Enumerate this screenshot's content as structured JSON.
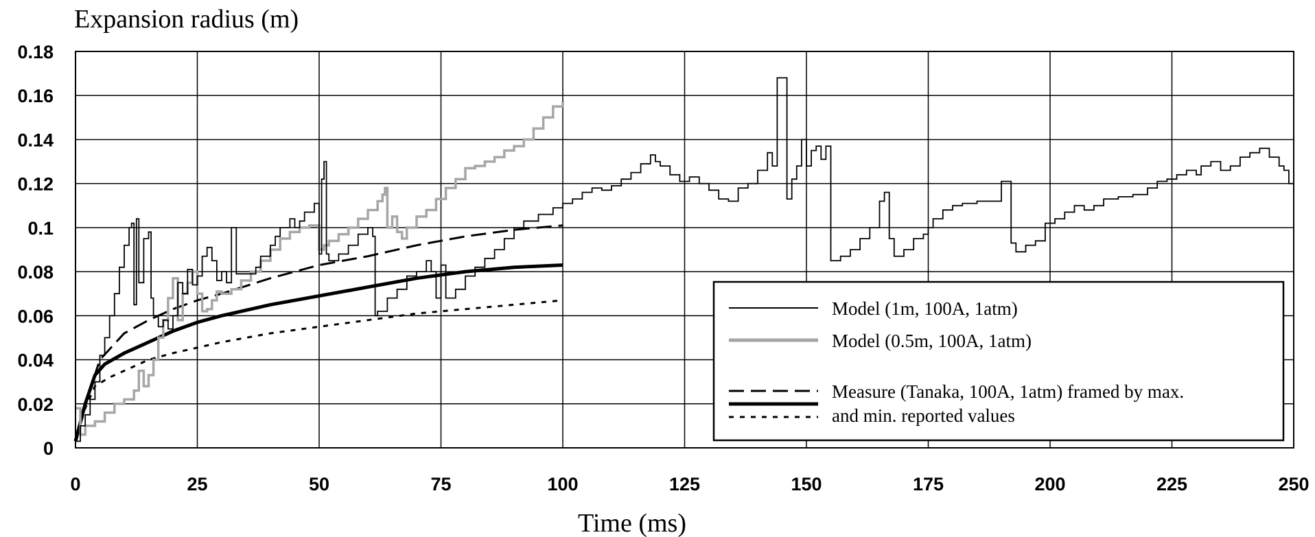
{
  "chart_data": {
    "type": "line",
    "title": "",
    "ylabel": "Expansion radius (m)",
    "xlabel": "Time (ms)",
    "xlim": [
      0,
      250
    ],
    "ylim": [
      0,
      0.18
    ],
    "x_ticks": [
      0,
      25,
      50,
      75,
      100,
      125,
      150,
      175,
      200,
      225,
      250
    ],
    "y_ticks": [
      0,
      0.02,
      0.04,
      0.06,
      0.08,
      0.1,
      0.12,
      0.14,
      0.16,
      0.18
    ],
    "x_tick_labels": [
      "0",
      "25",
      "50",
      "75",
      "100",
      "125",
      "150",
      "175",
      "200",
      "225",
      "250"
    ],
    "y_tick_labels": [
      "0",
      "0.02",
      "0.04",
      "0.06",
      "0.08",
      "0.1",
      "0.12",
      "0.14",
      "0.16",
      "0.18"
    ],
    "grid": true,
    "legend_position": "bottom-right",
    "legend": [
      {
        "text": "Model (1m, 100A, 1atm)",
        "style": "thin-black"
      },
      {
        "text": "Model (0.5m, 100A, 1atm)",
        "style": "thick-gray"
      },
      {
        "text": "Measure (Tanaka, 100A, 1atm) framed by max.",
        "style": "dashed"
      },
      {
        "text": "and min. reported values",
        "style": "thick-black"
      },
      {
        "text": "",
        "style": "dotted"
      }
    ],
    "series": [
      {
        "key": "model_1m",
        "color": "#000000",
        "step": true,
        "points": [
          [
            0,
            0.003
          ],
          [
            1,
            0.01
          ],
          [
            2,
            0.015
          ],
          [
            3,
            0.022
          ],
          [
            4,
            0.03
          ],
          [
            5,
            0.042
          ],
          [
            6,
            0.05
          ],
          [
            7,
            0.06
          ],
          [
            8,
            0.07
          ],
          [
            9,
            0.082
          ],
          [
            10,
            0.092
          ],
          [
            11,
            0.1
          ],
          [
            11.5,
            0.102
          ],
          [
            12,
            0.065
          ],
          [
            12.5,
            0.104
          ],
          [
            13,
            0.075
          ],
          [
            14,
            0.095
          ],
          [
            15,
            0.098
          ],
          [
            15.5,
            0.068
          ],
          [
            16,
            0.06
          ],
          [
            17,
            0.055
          ],
          [
            18,
            0.058
          ],
          [
            19,
            0.054
          ],
          [
            20,
            0.06
          ],
          [
            21,
            0.075
          ],
          [
            22,
            0.07
          ],
          [
            23,
            0.081
          ],
          [
            24,
            0.074
          ],
          [
            25,
            0.078
          ],
          [
            26,
            0.087
          ],
          [
            27,
            0.091
          ],
          [
            28,
            0.085
          ],
          [
            29,
            0.076
          ],
          [
            30,
            0.08
          ],
          [
            31,
            0.075
          ],
          [
            32,
            0.1
          ],
          [
            33,
            0.079
          ],
          [
            35,
            0.079
          ],
          [
            37,
            0.082
          ],
          [
            38,
            0.087
          ],
          [
            40,
            0.092
          ],
          [
            41,
            0.096
          ],
          [
            42,
            0.1
          ],
          [
            44,
            0.104
          ],
          [
            45,
            0.1
          ],
          [
            46,
            0.103
          ],
          [
            47,
            0.107
          ],
          [
            49,
            0.111
          ],
          [
            50,
            0.088
          ],
          [
            50.5,
            0.122
          ],
          [
            51,
            0.13
          ],
          [
            51.5,
            0.088
          ],
          [
            52,
            0.085
          ],
          [
            54,
            0.088
          ],
          [
            56,
            0.092
          ],
          [
            58,
            0.097
          ],
          [
            60,
            0.1
          ],
          [
            61,
            0.096
          ],
          [
            61.5,
            0.06
          ],
          [
            62,
            0.062
          ],
          [
            64,
            0.068
          ],
          [
            66,
            0.072
          ],
          [
            68,
            0.078
          ],
          [
            70,
            0.08
          ],
          [
            72,
            0.085
          ],
          [
            73,
            0.08
          ],
          [
            74,
            0.068
          ],
          [
            75,
            0.083
          ],
          [
            76,
            0.068
          ],
          [
            78,
            0.072
          ],
          [
            80,
            0.078
          ],
          [
            82,
            0.082
          ],
          [
            84,
            0.086
          ],
          [
            86,
            0.09
          ],
          [
            88,
            0.095
          ],
          [
            90,
            0.1
          ],
          [
            92,
            0.103
          ],
          [
            95,
            0.106
          ],
          [
            98,
            0.109
          ],
          [
            100,
            0.111
          ],
          [
            102,
            0.113
          ],
          [
            104,
            0.116
          ],
          [
            106,
            0.118
          ],
          [
            108,
            0.117
          ],
          [
            110,
            0.119
          ],
          [
            112,
            0.122
          ],
          [
            114,
            0.125
          ],
          [
            116,
            0.129
          ],
          [
            118,
            0.133
          ],
          [
            119,
            0.13
          ],
          [
            120,
            0.128
          ],
          [
            122,
            0.124
          ],
          [
            124,
            0.121
          ],
          [
            126,
            0.123
          ],
          [
            128,
            0.12
          ],
          [
            130,
            0.117
          ],
          [
            132,
            0.113
          ],
          [
            134,
            0.112
          ],
          [
            136,
            0.118
          ],
          [
            138,
            0.12
          ],
          [
            140,
            0.126
          ],
          [
            142,
            0.134
          ],
          [
            143,
            0.128
          ],
          [
            144,
            0.168
          ],
          [
            145,
            0.168
          ],
          [
            146,
            0.113
          ],
          [
            147,
            0.122
          ],
          [
            148,
            0.128
          ],
          [
            149,
            0.14
          ],
          [
            150,
            0.128
          ],
          [
            151,
            0.135
          ],
          [
            152,
            0.137
          ],
          [
            153,
            0.131
          ],
          [
            154,
            0.137
          ],
          [
            155,
            0.085
          ],
          [
            157,
            0.087
          ],
          [
            159,
            0.09
          ],
          [
            161,
            0.095
          ],
          [
            163,
            0.1
          ],
          [
            165,
            0.112
          ],
          [
            166,
            0.116
          ],
          [
            167,
            0.095
          ],
          [
            168,
            0.087
          ],
          [
            170,
            0.09
          ],
          [
            172,
            0.095
          ],
          [
            174,
            0.097
          ],
          [
            175,
            0.1
          ],
          [
            176,
            0.104
          ],
          [
            178,
            0.108
          ],
          [
            180,
            0.11
          ],
          [
            182,
            0.111
          ],
          [
            185,
            0.112
          ],
          [
            188,
            0.112
          ],
          [
            190,
            0.121
          ],
          [
            192,
            0.093
          ],
          [
            193,
            0.089
          ],
          [
            195,
            0.092
          ],
          [
            197,
            0.094
          ],
          [
            199,
            0.102
          ],
          [
            201,
            0.104
          ],
          [
            203,
            0.107
          ],
          [
            205,
            0.11
          ],
          [
            207,
            0.108
          ],
          [
            209,
            0.11
          ],
          [
            211,
            0.113
          ],
          [
            214,
            0.114
          ],
          [
            217,
            0.115
          ],
          [
            220,
            0.118
          ],
          [
            222,
            0.121
          ],
          [
            224,
            0.122
          ],
          [
            226,
            0.124
          ],
          [
            228,
            0.126
          ],
          [
            230,
            0.124
          ],
          [
            231,
            0.128
          ],
          [
            233,
            0.13
          ],
          [
            235,
            0.126
          ],
          [
            237,
            0.128
          ],
          [
            239,
            0.132
          ],
          [
            241,
            0.134
          ],
          [
            243,
            0.136
          ],
          [
            245,
            0.132
          ],
          [
            247,
            0.128
          ],
          [
            248,
            0.126
          ],
          [
            249,
            0.12
          ],
          [
            250,
            0.116
          ]
        ]
      },
      {
        "key": "model_05m",
        "color": "#a6a6a6",
        "step": true,
        "points": [
          [
            0,
            0.018
          ],
          [
            1,
            0.006
          ],
          [
            2,
            0.01
          ],
          [
            4,
            0.012
          ],
          [
            6,
            0.016
          ],
          [
            8,
            0.02
          ],
          [
            10,
            0.022
          ],
          [
            12,
            0.026
          ],
          [
            13,
            0.035
          ],
          [
            14,
            0.028
          ],
          [
            15,
            0.033
          ],
          [
            16,
            0.04
          ],
          [
            17,
            0.05
          ],
          [
            18,
            0.058
          ],
          [
            19,
            0.068
          ],
          [
            20,
            0.077
          ],
          [
            21,
            0.058
          ],
          [
            22,
            0.07
          ],
          [
            23,
            0.075
          ],
          [
            24,
            0.08
          ],
          [
            25,
            0.07
          ],
          [
            26,
            0.062
          ],
          [
            27,
            0.063
          ],
          [
            28,
            0.067
          ],
          [
            29,
            0.071
          ],
          [
            30,
            0.07
          ],
          [
            32,
            0.072
          ],
          [
            34,
            0.076
          ],
          [
            36,
            0.08
          ],
          [
            38,
            0.085
          ],
          [
            40,
            0.09
          ],
          [
            42,
            0.095
          ],
          [
            44,
            0.098
          ],
          [
            46,
            0.1
          ],
          [
            48,
            0.101
          ],
          [
            50,
            0.09
          ],
          [
            51,
            0.092
          ],
          [
            52,
            0.094
          ],
          [
            54,
            0.097
          ],
          [
            56,
            0.1
          ],
          [
            58,
            0.104
          ],
          [
            60,
            0.108
          ],
          [
            62,
            0.112
          ],
          [
            63,
            0.115
          ],
          [
            63.5,
            0.118
          ],
          [
            64,
            0.1
          ],
          [
            65,
            0.105
          ],
          [
            66,
            0.098
          ],
          [
            67,
            0.095
          ],
          [
            68,
            0.1
          ],
          [
            70,
            0.105
          ],
          [
            72,
            0.108
          ],
          [
            74,
            0.113
          ],
          [
            76,
            0.118
          ],
          [
            78,
            0.122
          ],
          [
            80,
            0.127
          ],
          [
            82,
            0.128
          ],
          [
            84,
            0.13
          ],
          [
            86,
            0.132
          ],
          [
            88,
            0.135
          ],
          [
            90,
            0.137
          ],
          [
            92,
            0.14
          ],
          [
            94,
            0.145
          ],
          [
            96,
            0.15
          ],
          [
            98,
            0.155
          ],
          [
            100,
            0.157
          ]
        ]
      },
      {
        "key": "measure_max",
        "color": "#000000",
        "dash": "22,10",
        "width": 3,
        "points": [
          [
            0,
            0.003
          ],
          [
            2,
            0.02
          ],
          [
            5,
            0.04
          ],
          [
            10,
            0.052
          ],
          [
            15,
            0.058
          ],
          [
            20,
            0.063
          ],
          [
            25,
            0.067
          ],
          [
            30,
            0.07
          ],
          [
            40,
            0.077
          ],
          [
            50,
            0.083
          ],
          [
            60,
            0.087
          ],
          [
            70,
            0.092
          ],
          [
            80,
            0.096
          ],
          [
            90,
            0.099
          ],
          [
            100,
            0.101
          ]
        ]
      },
      {
        "key": "measure_mean",
        "color": "#000000",
        "width": 5,
        "points": [
          [
            0,
            0.003
          ],
          [
            2,
            0.02
          ],
          [
            4,
            0.033
          ],
          [
            6,
            0.038
          ],
          [
            10,
            0.043
          ],
          [
            15,
            0.048
          ],
          [
            20,
            0.053
          ],
          [
            25,
            0.057
          ],
          [
            30,
            0.06
          ],
          [
            40,
            0.065
          ],
          [
            50,
            0.069
          ],
          [
            60,
            0.073
          ],
          [
            70,
            0.077
          ],
          [
            80,
            0.08
          ],
          [
            90,
            0.082
          ],
          [
            100,
            0.083
          ]
        ]
      },
      {
        "key": "measure_min",
        "color": "#000000",
        "dash": "7,9",
        "width": 3,
        "points": [
          [
            0,
            0.003
          ],
          [
            2,
            0.018
          ],
          [
            4,
            0.028
          ],
          [
            7,
            0.032
          ],
          [
            10,
            0.035
          ],
          [
            15,
            0.04
          ],
          [
            20,
            0.043
          ],
          [
            30,
            0.048
          ],
          [
            40,
            0.052
          ],
          [
            50,
            0.055
          ],
          [
            60,
            0.058
          ],
          [
            70,
            0.061
          ],
          [
            80,
            0.063
          ],
          [
            90,
            0.065
          ],
          [
            100,
            0.067
          ]
        ]
      }
    ]
  }
}
